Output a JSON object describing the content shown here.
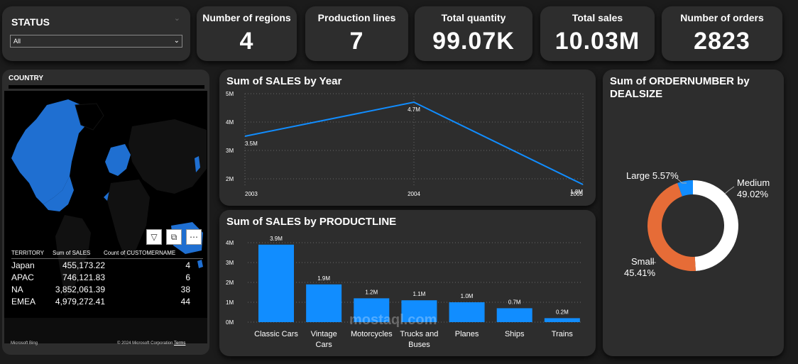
{
  "status": {
    "title": "STATUS",
    "selected": "All"
  },
  "kpis": [
    {
      "title": "Number of regions",
      "value": "4"
    },
    {
      "title": "Production lines",
      "value": "7"
    },
    {
      "title": "Total quantity",
      "value": "99.07K"
    },
    {
      "title": "Total sales",
      "value": "10.03M"
    },
    {
      "title": "Number of orders",
      "value": "2823"
    }
  ],
  "map": {
    "title": "COUNTRY",
    "table": {
      "headers": [
        "TERRITORY",
        "Sum of SALES",
        "Count of CUSTOMERNAME"
      ],
      "rows": [
        {
          "territory": "Japan",
          "sales": "455,173.22",
          "count": "4"
        },
        {
          "territory": "APAC",
          "sales": "746,121.83",
          "count": "6"
        },
        {
          "territory": "NA",
          "sales": "3,852,061.39",
          "count": "38"
        },
        {
          "territory": "EMEA",
          "sales": "4,979,272.41",
          "count": "44"
        }
      ]
    },
    "attribution_left": "Microsoft Bing",
    "attribution_right": "© 2024 Microsoft Corporation",
    "terms": "Terms"
  },
  "colors": {
    "accent": "#118dff",
    "orange": "#e66c37",
    "panel": "#2d2d2d",
    "background": "#1b1b1b"
  },
  "icons": [
    "filter-icon",
    "focus-mode-icon",
    "more-options-icon"
  ],
  "watermark": "mostaql.com",
  "chart_data": [
    {
      "type": "line",
      "title": "Sum of SALES by Year",
      "x": [
        "2003",
        "2004",
        "2005"
      ],
      "values": [
        3.5,
        4.7,
        1.8
      ],
      "labels": [
        "3.5M",
        "4.7M",
        "1.8M"
      ],
      "yticks": [
        "2M",
        "3M",
        "4M",
        "5M"
      ],
      "ylim": [
        1.7,
        5
      ],
      "grid": true
    },
    {
      "type": "bar",
      "title": "Sum of SALES by PRODUCTLINE",
      "categories": [
        "Classic Cars",
        "Vintage Cars",
        "Motorcycles",
        "Trucks and Buses",
        "Planes",
        "Ships",
        "Trains"
      ],
      "category_lines": [
        [
          "Classic Cars"
        ],
        [
          "Vintage",
          "Cars"
        ],
        [
          "Motorcycles"
        ],
        [
          "Trucks and",
          "Buses"
        ],
        [
          "Planes"
        ],
        [
          "Ships"
        ],
        [
          "Trains"
        ]
      ],
      "values": [
        3.9,
        1.9,
        1.2,
        1.1,
        1.0,
        0.7,
        0.2
      ],
      "labels": [
        "3.9M",
        "1.9M",
        "1.2M",
        "1.1M",
        "1.0M",
        "0.7M",
        "0.2M"
      ],
      "yticks": [
        "0M",
        "1M",
        "2M",
        "3M",
        "4M"
      ],
      "ylim": [
        0,
        4
      ],
      "grid": true
    },
    {
      "type": "pie",
      "title": "Sum of ORDERNUMBER by DEALSIZE",
      "slices": [
        {
          "name": "Medium",
          "pct": "49.02%",
          "value": 49.02,
          "color": "#ffffff"
        },
        {
          "name": "Small",
          "pct": "45.41%",
          "value": 45.41,
          "color": "#e66c37"
        },
        {
          "name": "Large",
          "pct": "5.57%",
          "value": 5.57,
          "color": "#118dff"
        }
      ]
    }
  ]
}
